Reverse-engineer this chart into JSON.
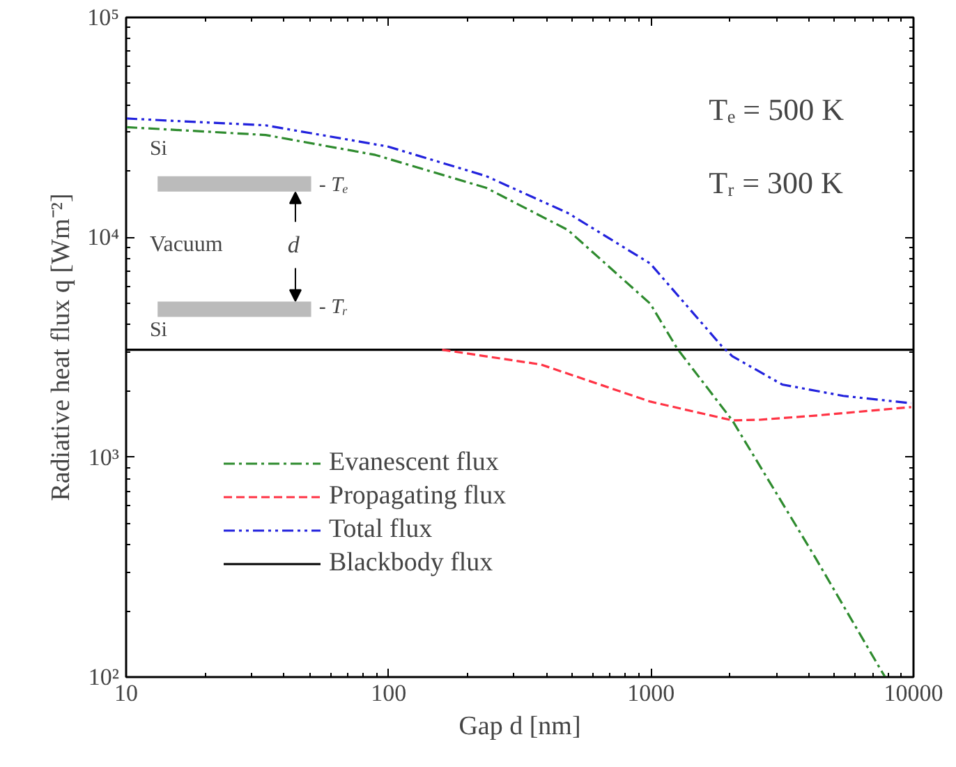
{
  "chart_data": {
    "type": "line",
    "xlabel": "Gap d [nm]",
    "ylabel": "Radiative heat flux q [Wm⁻²]",
    "log": "xy",
    "grid": false,
    "legend": "bottom left",
    "marker": "none",
    "xlim": [
      10,
      10000
    ],
    "ylim": [
      100,
      100000
    ],
    "xticks": [
      10,
      100,
      1000,
      10000
    ],
    "yticks": [
      {
        "value": 100,
        "label": "10²"
      },
      {
        "value": 1000,
        "label": "10³"
      },
      {
        "value": 10000,
        "label": "10⁴"
      },
      {
        "value": 100000,
        "label": "10⁵"
      }
    ],
    "series": [
      {
        "name": "Evanescent flux",
        "color": "#2e8b2e",
        "line_style": "dashdot",
        "x": [
          10,
          34,
          89,
          235,
          482,
          993,
          1260,
          2040,
          4210,
          7500,
          7800
        ],
        "values": [
          31700,
          29200,
          23700,
          16800,
          10800,
          4990,
          3110,
          1470,
          352,
          108,
          100
        ]
      },
      {
        "name": "Propagating flux",
        "color": "#ff3344",
        "line_style": "dashed",
        "x": [
          160,
          380,
          993,
          2040,
          2600,
          4210,
          9800
        ],
        "values": [
          3080,
          2640,
          1790,
          1470,
          1480,
          1545,
          1690
        ]
      },
      {
        "name": "Total flux",
        "color": "#2222dd",
        "line_style": "dashdotdot",
        "x": [
          10,
          34,
          99,
          235,
          482,
          993,
          1860,
          2040,
          3160,
          5400,
          9800
        ],
        "values": [
          34700,
          32300,
          25900,
          19000,
          12900,
          7600,
          3200,
          2880,
          2140,
          1900,
          1760
        ]
      },
      {
        "name": "Blackbody flux",
        "color": "#000000",
        "line_style": "solid",
        "x": [
          10,
          10000
        ],
        "values": [
          3080,
          3080
        ]
      }
    ],
    "annotations": [
      "Tₑ = 500 K",
      "Tᵣ = 300 K",
      "Si",
      "Vacuum",
      "d",
      "- Tₑ",
      "- Tᵣ",
      "Si"
    ]
  }
}
